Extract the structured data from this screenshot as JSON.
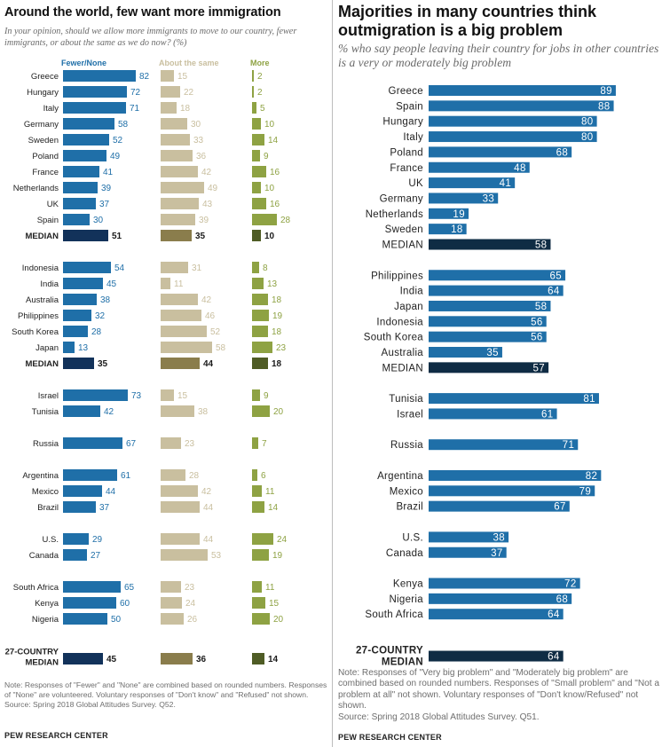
{
  "left": {
    "title": "Around the world, few want more immigration",
    "subtitle": "In your opinion, should we allow more immigrants to move to our country, fewer immigrants, or about the same as we do now? (%)",
    "note": "Note: Responses of \"Fewer\" and \"None\" are combined based on rounded numbers. Responses of \"None\" are volunteered. Voluntary responses of \"Don't know\" and \"Refused\" not shown.",
    "source": "Source: Spring 2018 Global Attitudes Survey. Q52.",
    "brand": "PEW RESEARCH CENTER"
  },
  "right": {
    "title": "Majorities in many countries think outmigration is a big problem",
    "subtitle": "% who say people leaving their country for jobs in other countries is a very or moderately big problem",
    "note": "Note: Responses of \"Very big problem\" and \"Moderately big problem\" are combined based on rounded numbers. Responses of \"Small problem\" and \"Not a problem at all\" not shown. Voluntary responses of \"Don't know/Refused\" not shown.",
    "source": "Source: Spring 2018 Global Attitudes Survey. Q51.",
    "brand": "PEW RESEARCH CENTER"
  },
  "colors": {
    "fewer": "#1f6fa8",
    "same": "#c9bf9f",
    "more": "#8ea243",
    "fewer_median": "#12325a",
    "same_median": "#8a7d4c",
    "more_median": "#4f5c25",
    "right_bar": "#1f6fa8",
    "right_median": "#0f2c44"
  },
  "chart_data": [
    {
      "type": "bar",
      "orientation": "horizontal",
      "title": "Around the world, few want more immigration",
      "subtitle": "In your opinion, should we allow more immigrants to move to our country, fewer immigrants, or about the same as we do now? (%)",
      "series_names": [
        "Fewer/None",
        "About the same",
        "More"
      ],
      "groups": [
        [
          {
            "label": "Greece",
            "values": [
              82,
              15,
              2
            ]
          },
          {
            "label": "Hungary",
            "values": [
              72,
              22,
              2
            ]
          },
          {
            "label": "Italy",
            "values": [
              71,
              18,
              5
            ]
          },
          {
            "label": "Germany",
            "values": [
              58,
              30,
              10
            ]
          },
          {
            "label": "Sweden",
            "values": [
              52,
              33,
              14
            ]
          },
          {
            "label": "Poland",
            "values": [
              49,
              36,
              9
            ]
          },
          {
            "label": "France",
            "values": [
              41,
              42,
              16
            ]
          },
          {
            "label": "Netherlands",
            "values": [
              39,
              49,
              10
            ]
          },
          {
            "label": "UK",
            "values": [
              37,
              43,
              16
            ]
          },
          {
            "label": "Spain",
            "values": [
              30,
              39,
              28
            ]
          },
          {
            "label": "MEDIAN",
            "values": [
              51,
              35,
              10
            ],
            "median": true
          }
        ],
        [
          {
            "label": "Indonesia",
            "values": [
              54,
              31,
              8
            ]
          },
          {
            "label": "India",
            "values": [
              45,
              11,
              13
            ]
          },
          {
            "label": "Australia",
            "values": [
              38,
              42,
              18
            ]
          },
          {
            "label": "Philippines",
            "values": [
              32,
              46,
              19
            ]
          },
          {
            "label": "South Korea",
            "values": [
              28,
              52,
              18
            ]
          },
          {
            "label": "Japan",
            "values": [
              13,
              58,
              23
            ]
          },
          {
            "label": "MEDIAN",
            "values": [
              35,
              44,
              18
            ],
            "median": true
          }
        ],
        [
          {
            "label": "Israel",
            "values": [
              73,
              15,
              9
            ]
          },
          {
            "label": "Tunisia",
            "values": [
              42,
              38,
              20
            ]
          }
        ],
        [
          {
            "label": "Russia",
            "values": [
              67,
              23,
              7
            ]
          }
        ],
        [
          {
            "label": "Argentina",
            "values": [
              61,
              28,
              6
            ]
          },
          {
            "label": "Mexico",
            "values": [
              44,
              42,
              11
            ]
          },
          {
            "label": "Brazil",
            "values": [
              37,
              44,
              14
            ]
          }
        ],
        [
          {
            "label": "U.S.",
            "values": [
              29,
              44,
              24
            ]
          },
          {
            "label": "Canada",
            "values": [
              27,
              53,
              19
            ]
          }
        ],
        [
          {
            "label": "South Africa",
            "values": [
              65,
              23,
              11
            ]
          },
          {
            "label": "Kenya",
            "values": [
              60,
              24,
              15
            ]
          },
          {
            "label": "Nigeria",
            "values": [
              50,
              26,
              20
            ]
          }
        ],
        [
          {
            "label": "27-COUNTRY",
            "label2": "MEDIAN",
            "values": [
              45,
              36,
              14
            ],
            "median": true
          }
        ]
      ]
    },
    {
      "type": "bar",
      "orientation": "horizontal",
      "title": "Majorities in many countries think outmigration is a big problem",
      "subtitle": "% who say people leaving their country for jobs in other countries is a very or moderately big problem",
      "groups": [
        [
          {
            "label": "Greece",
            "value": 89
          },
          {
            "label": "Spain",
            "value": 88
          },
          {
            "label": "Hungary",
            "value": 80
          },
          {
            "label": "Italy",
            "value": 80
          },
          {
            "label": "Poland",
            "value": 68
          },
          {
            "label": "France",
            "value": 48
          },
          {
            "label": "UK",
            "value": 41
          },
          {
            "label": "Germany",
            "value": 33
          },
          {
            "label": "Netherlands",
            "value": 19
          },
          {
            "label": "Sweden",
            "value": 18
          },
          {
            "label": "MEDIAN",
            "value": 58,
            "median": true
          }
        ],
        [
          {
            "label": "Philippines",
            "value": 65
          },
          {
            "label": "India",
            "value": 64
          },
          {
            "label": "Japan",
            "value": 58
          },
          {
            "label": "Indonesia",
            "value": 56
          },
          {
            "label": "South Korea",
            "value": 56
          },
          {
            "label": "Australia",
            "value": 35
          },
          {
            "label": "MEDIAN",
            "value": 57,
            "median": true
          }
        ],
        [
          {
            "label": "Tunisia",
            "value": 81
          },
          {
            "label": "Israel",
            "value": 61
          }
        ],
        [
          {
            "label": "Russia",
            "value": 71
          }
        ],
        [
          {
            "label": "Argentina",
            "value": 82
          },
          {
            "label": "Mexico",
            "value": 79
          },
          {
            "label": "Brazil",
            "value": 67
          }
        ],
        [
          {
            "label": "U.S.",
            "value": 38
          },
          {
            "label": "Canada",
            "value": 37
          }
        ],
        [
          {
            "label": "Kenya",
            "value": 72
          },
          {
            "label": "Nigeria",
            "value": 68
          },
          {
            "label": "South Africa",
            "value": 64
          }
        ],
        [
          {
            "label": "27-COUNTRY",
            "label2": "MEDIAN",
            "value": 64,
            "median": true
          }
        ]
      ]
    }
  ]
}
